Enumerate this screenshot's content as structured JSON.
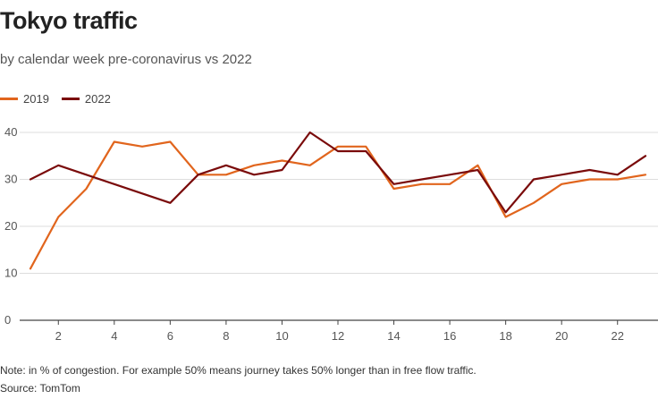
{
  "colors": {
    "series_2019": "#e1651d",
    "series_2022": "#7a0b0b",
    "grid": "#dddddd",
    "axis": "#444444"
  },
  "chart_data": {
    "type": "line",
    "title": "Tokyo traffic",
    "subtitle": "by calendar week pre-coronavirus vs 2022",
    "xlabel": "",
    "ylabel": "",
    "x": [
      1,
      2,
      3,
      4,
      5,
      6,
      7,
      8,
      9,
      10,
      11,
      12,
      13,
      14,
      15,
      16,
      17,
      18,
      19,
      20,
      21,
      22,
      23
    ],
    "xlim": [
      1,
      23
    ],
    "ylim": [
      0,
      40
    ],
    "x_ticks": [
      "2",
      "4",
      "6",
      "8",
      "10",
      "12",
      "14",
      "16",
      "18",
      "20",
      "22"
    ],
    "y_ticks": [
      "0",
      "10",
      "20",
      "30",
      "40"
    ],
    "grid": true,
    "legend": [
      "2019",
      "2022"
    ],
    "series": [
      {
        "name": "2019",
        "values": [
          11,
          22,
          28,
          38,
          37,
          38,
          31,
          31,
          33,
          34,
          33,
          37,
          37,
          28,
          29,
          29,
          33,
          22,
          25,
          29,
          30,
          30,
          31
        ]
      },
      {
        "name": "2022",
        "values": [
          30,
          33,
          31,
          29,
          27,
          25,
          31,
          33,
          31,
          32,
          40,
          36,
          36,
          29,
          30,
          31,
          32,
          23,
          30,
          31,
          32,
          31,
          35
        ]
      }
    ]
  },
  "footer": {
    "note": "Note: in % of congestion. For example 50% means journey takes 50% longer than in free flow traffic.",
    "source": "Source: TomTom"
  }
}
